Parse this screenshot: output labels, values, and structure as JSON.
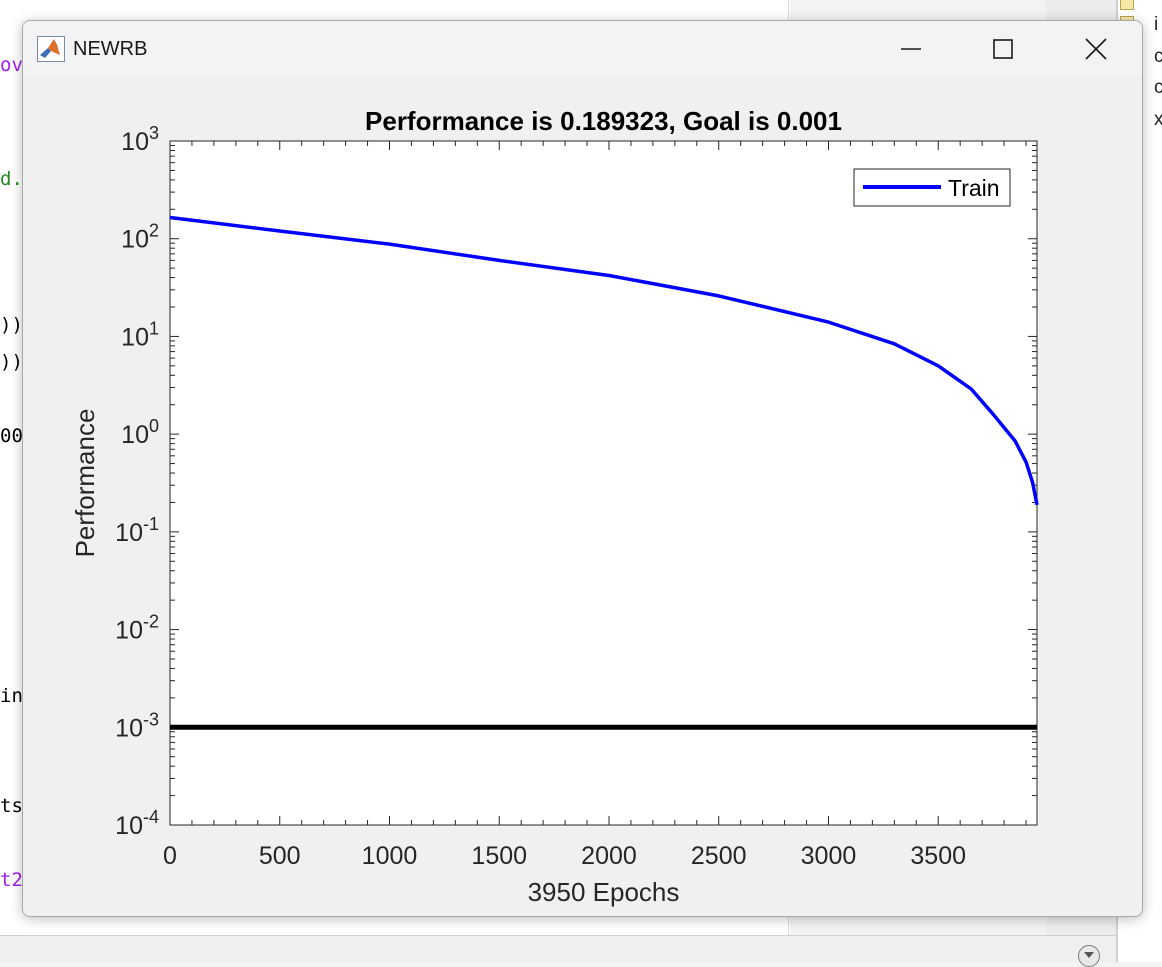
{
  "window": {
    "title": "NEWRB"
  },
  "background_code_fragments": [
    {
      "text": "ov",
      "color": "#a020f0"
    },
    {
      "text": "d.",
      "color": "#228b22"
    },
    {
      "text": "))",
      "color": "#000000"
    },
    {
      "text": "))",
      "color": "#000000"
    },
    {
      "text": "00",
      "color": "#000000"
    },
    {
      "text": "in]",
      "color": "#000000"
    },
    {
      "text": "ts",
      "color": "#000000"
    },
    {
      "text": "t2",
      "color": "#a020f0"
    }
  ],
  "workspace_letters": [
    "i",
    "c",
    "c",
    "x"
  ],
  "chart_data": {
    "type": "line",
    "title": "Performance is 0.189323, Goal is 0.001",
    "xlabel": "3950 Epochs",
    "ylabel": "Performance",
    "yscale": "log",
    "xlim": [
      0,
      3950
    ],
    "ylim": [
      0.0001,
      1000
    ],
    "x_ticks": [
      "0",
      "500",
      "1000",
      "1500",
      "2000",
      "2500",
      "3000",
      "3500"
    ],
    "y_ticks": [
      {
        "base": "10",
        "exp": "3"
      },
      {
        "base": "10",
        "exp": "2"
      },
      {
        "base": "10",
        "exp": "1"
      },
      {
        "base": "10",
        "exp": "0"
      },
      {
        "base": "10",
        "exp": "-1"
      },
      {
        "base": "10",
        "exp": "-2"
      },
      {
        "base": "10",
        "exp": "-3"
      },
      {
        "base": "10",
        "exp": "-4"
      }
    ],
    "grid": false,
    "legend_position": "top-right",
    "series": [
      {
        "name": "Train",
        "color": "#0000ff",
        "x": [
          0,
          500,
          1000,
          1500,
          2000,
          2500,
          3000,
          3300,
          3500,
          3650,
          3750,
          3850,
          3900,
          3930,
          3950
        ],
        "y": [
          165,
          120,
          88,
          60,
          42,
          26,
          14,
          8.4,
          5.0,
          2.9,
          1.6,
          0.85,
          0.52,
          0.32,
          0.189323
        ]
      },
      {
        "name": "Goal",
        "color": "#000000",
        "x": [
          0,
          3950
        ],
        "y": [
          0.001,
          0.001
        ]
      }
    ]
  }
}
